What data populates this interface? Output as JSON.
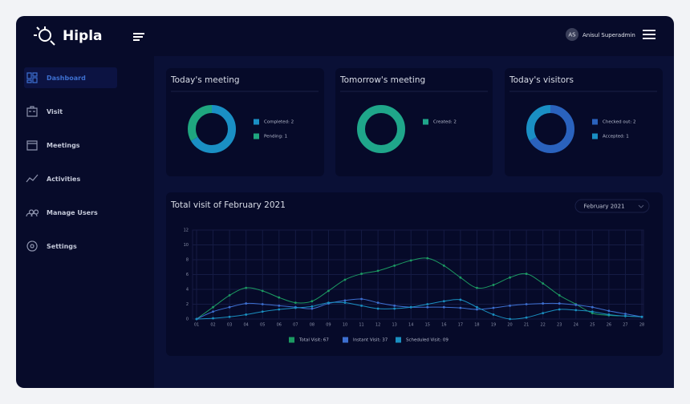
{
  "header": {
    "logo": "Hipla",
    "avatar": "AS",
    "user": "Anisul Superadmin"
  },
  "sidebar": [
    "Dashboard",
    "Visit",
    "Meetings",
    "Activities",
    "Manage Users",
    "Settings"
  ],
  "chart_data": [
    {
      "type": "pie",
      "title": "Today's meeting",
      "categories": [
        "Completed: 2",
        "Pending: 1"
      ],
      "values": [
        2,
        1
      ],
      "colors": [
        "#1a8fc4",
        "#1fa67f"
      ]
    },
    {
      "type": "pie",
      "title": "Tomorrow's meeting",
      "categories": [
        "Created: 2"
      ],
      "values": [
        2
      ],
      "colors": [
        "#1fa68a"
      ]
    },
    {
      "type": "pie",
      "title": "Today's visitors",
      "categories": [
        "Checked out: 2",
        "Accepted: 1"
      ],
      "values": [
        2,
        1
      ],
      "colors": [
        "#2a62bd",
        "#1a8fc4"
      ]
    },
    {
      "type": "line",
      "title": "Total visit of February 2021",
      "dropdown": "February 2021",
      "categories": [
        "01",
        "02",
        "03",
        "04",
        "05",
        "06",
        "07",
        "08",
        "09",
        "10",
        "11",
        "12",
        "13",
        "14",
        "15",
        "16",
        "17",
        "18",
        "19",
        "20",
        "21",
        "22",
        "23",
        "24",
        "25",
        "26",
        "27",
        "28"
      ],
      "ylim": [
        0,
        12
      ],
      "yticks": [
        0,
        2,
        4,
        6,
        8,
        10,
        12
      ],
      "grid": true,
      "series": [
        {
          "name": "Total Visit: 67",
          "color": "#1c9a62",
          "values": [
            0,
            1.6,
            3.2,
            4.2,
            3.8,
            2.9,
            2.2,
            2.4,
            3.8,
            5.3,
            6.1,
            6.5,
            7.2,
            7.9,
            8.2,
            7.2,
            5.6,
            4.2,
            4.6,
            5.6,
            6.1,
            4.8,
            3.2,
            2.0,
            0.8,
            0.5,
            0.4,
            0.3
          ]
        },
        {
          "name": "Instant Visit: 37",
          "color": "#3d6fd0",
          "values": [
            0,
            1.0,
            1.6,
            2.1,
            2.0,
            1.8,
            1.6,
            1.4,
            2.1,
            2.5,
            2.7,
            2.2,
            1.8,
            1.6,
            1.6,
            1.6,
            1.5,
            1.3,
            1.5,
            1.8,
            2.0,
            2.1,
            2.1,
            1.9,
            1.6,
            1.1,
            0.7,
            0.3
          ]
        },
        {
          "name": "Scheduled  Visit: 09",
          "color": "#1a8fc0",
          "values": [
            0,
            0.1,
            0.3,
            0.6,
            1.0,
            1.3,
            1.5,
            1.7,
            2.2,
            2.2,
            1.8,
            1.4,
            1.4,
            1.6,
            2.0,
            2.4,
            2.6,
            1.6,
            0.6,
            0,
            0.2,
            0.8,
            1.3,
            1.2,
            1.0,
            0.6,
            0.4,
            0.3
          ]
        }
      ]
    }
  ]
}
